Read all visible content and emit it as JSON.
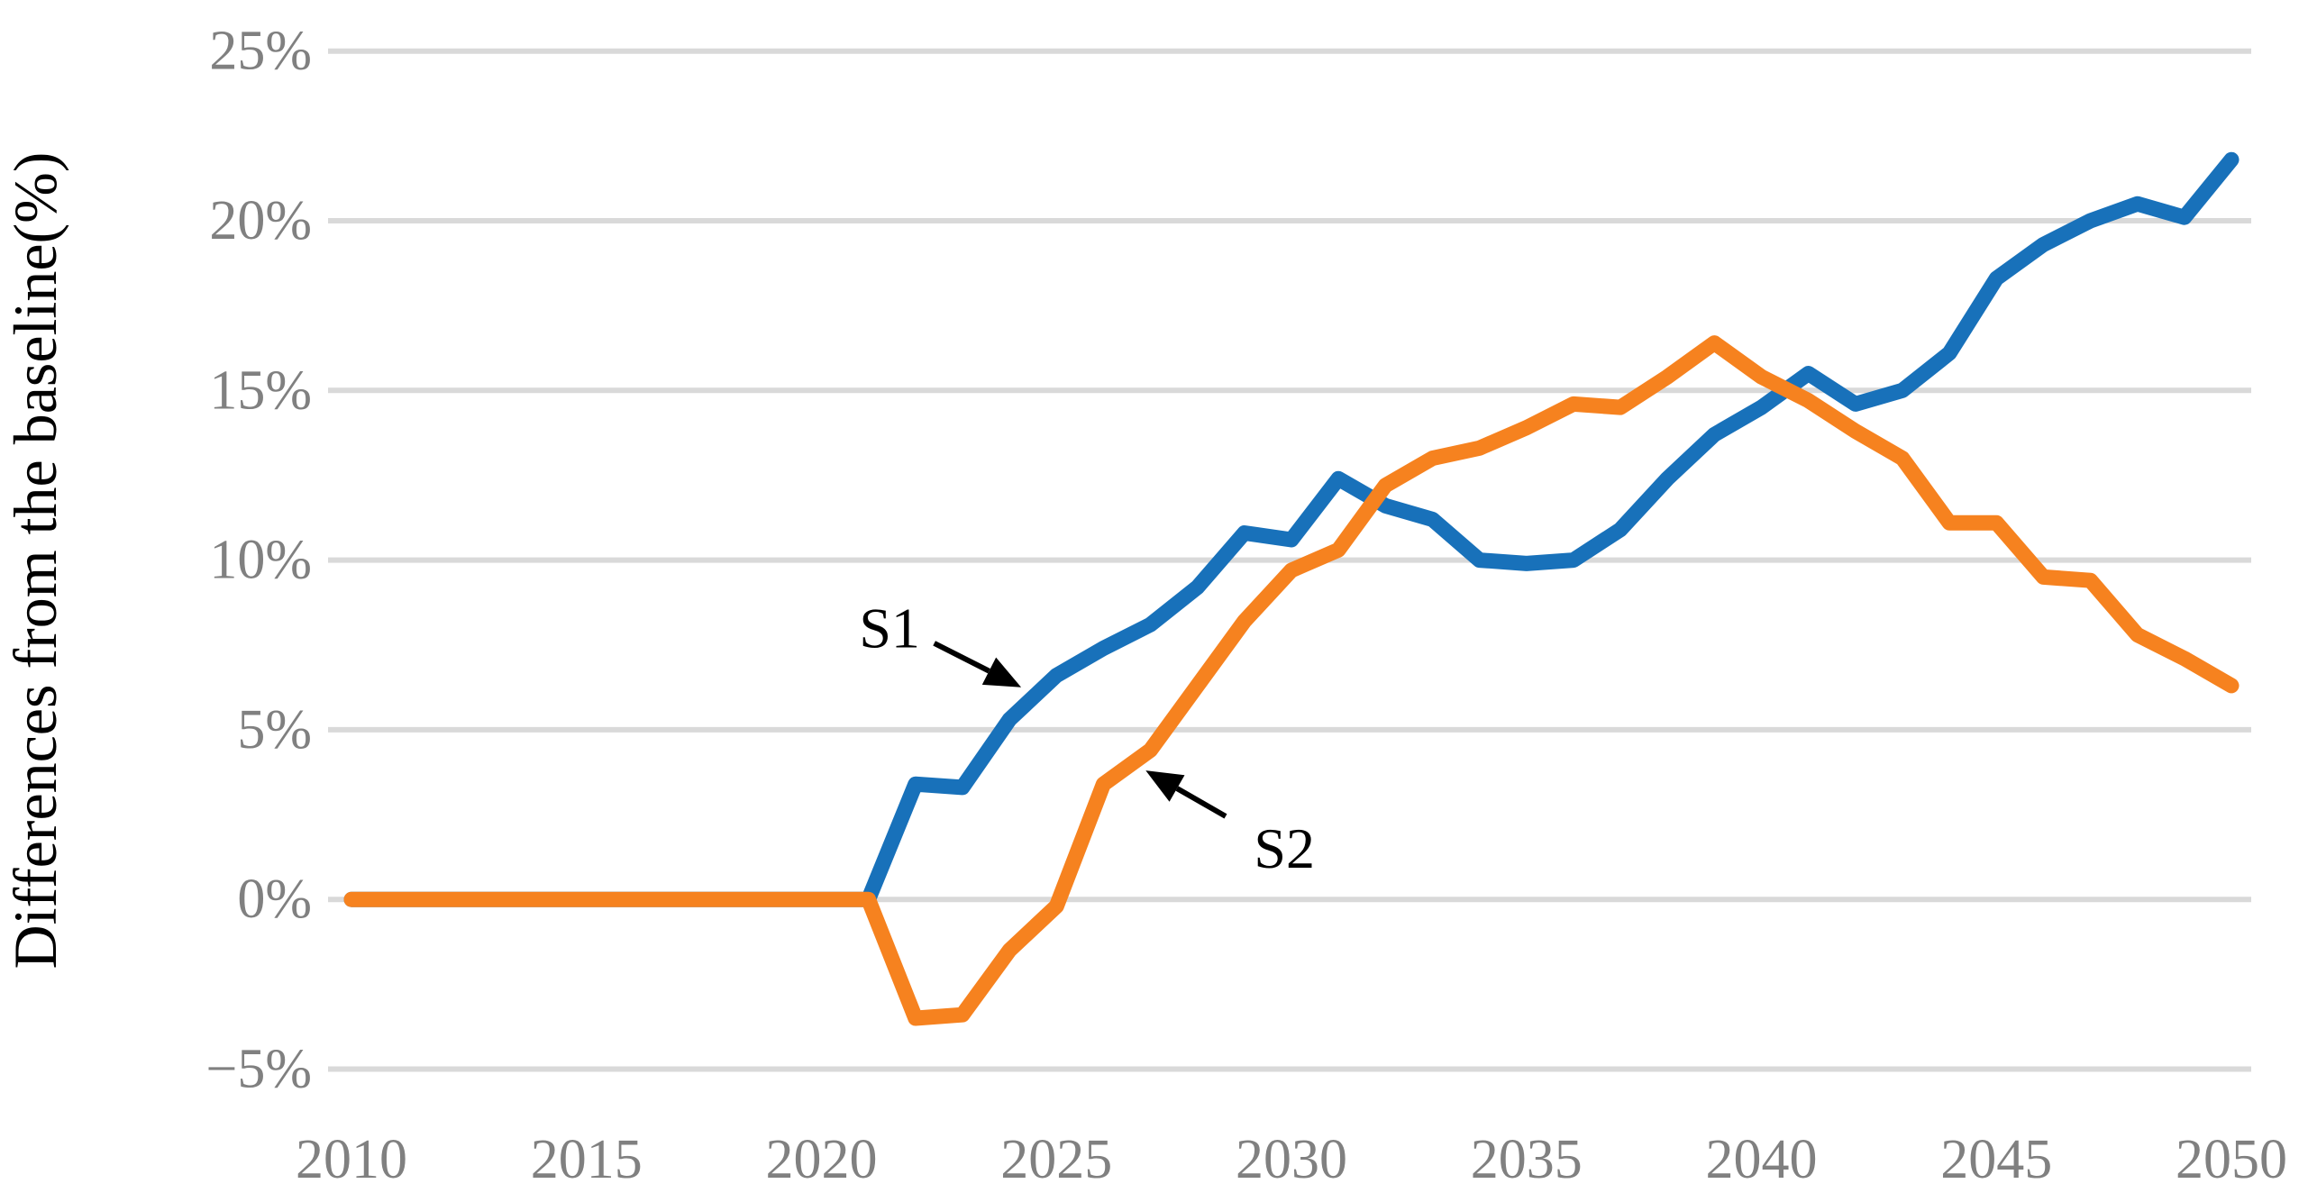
{
  "chart_data": {
    "type": "line",
    "title": "",
    "xlabel": "",
    "ylabel": "Differences from the baseline(%)",
    "x": [
      2010,
      2011,
      2012,
      2013,
      2014,
      2015,
      2016,
      2017,
      2018,
      2019,
      2020,
      2021,
      2022,
      2023,
      2024,
      2025,
      2026,
      2027,
      2028,
      2029,
      2030,
      2031,
      2032,
      2033,
      2034,
      2035,
      2036,
      2037,
      2038,
      2039,
      2040,
      2041,
      2042,
      2043,
      2044,
      2045,
      2046,
      2047,
      2048,
      2049,
      2050
    ],
    "xticks": [
      2010,
      2015,
      2020,
      2025,
      2030,
      2035,
      2040,
      2045,
      2050
    ],
    "yticks": [
      {
        "value": 25,
        "label": "25%"
      },
      {
        "value": 20,
        "label": "20%"
      },
      {
        "value": 15,
        "label": "15%"
      },
      {
        "value": 10,
        "label": "10%"
      },
      {
        "value": 5,
        "label": "5%"
      },
      {
        "value": 0,
        "label": "0%"
      },
      {
        "value": -5,
        "label": "−5%"
      }
    ],
    "ylim": [
      -5,
      25
    ],
    "grid": "horizontal-only",
    "legend": "none (series labeled by in-plot arrows S1, S2)",
    "series": [
      {
        "name": "S1",
        "color": "#1871BA",
        "values": [
          0,
          0,
          0,
          0,
          0,
          0,
          0,
          0,
          0,
          0,
          0,
          0,
          3.4,
          3.3,
          5.3,
          6.6,
          7.4,
          8.1,
          9.2,
          10.8,
          10.6,
          12.4,
          11.6,
          11.2,
          10.0,
          9.9,
          10.0,
          10.9,
          12.4,
          13.7,
          14.5,
          15.5,
          14.6,
          15.0,
          16.1,
          18.3,
          19.3,
          20.0,
          20.5,
          20.1,
          21.8
        ]
      },
      {
        "name": "S2",
        "color": "#F6821F",
        "values": [
          0,
          0,
          0,
          0,
          0,
          0,
          0,
          0,
          0,
          0,
          0,
          0,
          -3.5,
          -3.4,
          -1.5,
          -0.2,
          3.4,
          4.4,
          6.3,
          8.2,
          9.7,
          10.3,
          12.2,
          13.0,
          13.3,
          13.9,
          14.6,
          14.5,
          15.4,
          16.4,
          15.4,
          14.7,
          13.8,
          13.0,
          11.1,
          11.1,
          9.5,
          9.4,
          7.8,
          7.1,
          6.3
        ]
      }
    ],
    "annotations": [
      {
        "label": "S1",
        "text_year": 2021.45,
        "text_value": 8.0,
        "arrow_from_year": 2022.4,
        "arrow_from_value": 7.55,
        "arrow_to_year": 2024.25,
        "arrow_to_value": 6.25
      },
      {
        "label": "S2",
        "text_year": 2029.85,
        "text_value": 1.5,
        "arrow_from_year": 2028.6,
        "arrow_from_value": 2.45,
        "arrow_to_year": 2026.9,
        "arrow_to_value": 3.8
      }
    ],
    "colors": {
      "gridline": "#D9D9D9",
      "tick_text": "#808080",
      "axis_title_text": "#000000",
      "annotation_text": "#000000",
      "background": "#FFFFFF"
    }
  }
}
